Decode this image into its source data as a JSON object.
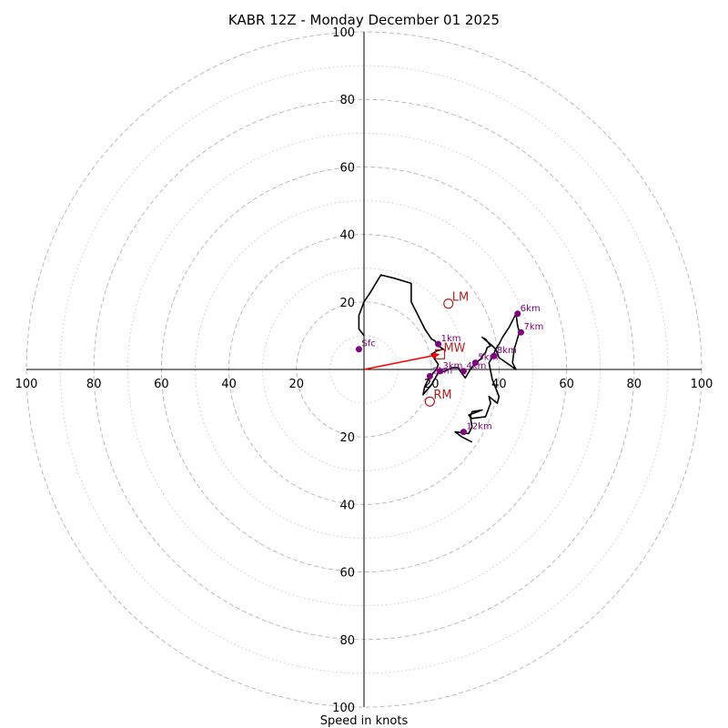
{
  "chart_data": {
    "type": "hodograph",
    "title": "KABR 12Z - Monday December 01 2025",
    "xlabel": "Speed in knots",
    "units": "knots",
    "axis_range": [
      -100,
      100
    ],
    "major_rings": [
      20,
      40,
      60,
      80,
      100
    ],
    "minor_rings": [
      10,
      30,
      50,
      70,
      90
    ],
    "tick_labels": {
      "left": [
        "100",
        "80",
        "60",
        "40",
        "20"
      ],
      "right": [
        "20",
        "40",
        "60",
        "80",
        "100"
      ],
      "top": [
        "100",
        "80",
        "60",
        "40",
        "20"
      ],
      "bottom": [
        "20",
        "40",
        "60",
        "80",
        "100"
      ]
    },
    "profile": [
      [
        0,
        10
      ],
      [
        -1.5,
        12
      ],
      [
        -1.5,
        16
      ],
      [
        0,
        20
      ],
      [
        2,
        23
      ],
      [
        5,
        28
      ],
      [
        9,
        27
      ],
      [
        14,
        25.5
      ],
      [
        14,
        20
      ],
      [
        16,
        16
      ],
      [
        18,
        12
      ],
      [
        20,
        9
      ],
      [
        21,
        8.5
      ],
      [
        22,
        7
      ],
      [
        23.5,
        6
      ],
      [
        21.5,
        5.5
      ],
      [
        20,
        4.5
      ],
      [
        21,
        3
      ],
      [
        22,
        1.5
      ],
      [
        21.5,
        0
      ],
      [
        20.5,
        -1
      ],
      [
        20,
        -2
      ],
      [
        19,
        -3
      ],
      [
        18,
        -5
      ],
      [
        17.5,
        -7.5
      ],
      [
        20,
        -4.5
      ],
      [
        22,
        -1
      ],
      [
        24,
        -0.5
      ],
      [
        26,
        0.5
      ],
      [
        28,
        0.5
      ],
      [
        28.5,
        -0.5
      ],
      [
        30,
        -2.5
      ],
      [
        31.5,
        0
      ],
      [
        33,
        2
      ],
      [
        34.5,
        3
      ],
      [
        35,
        4
      ],
      [
        36,
        5
      ],
      [
        36.5,
        6.5
      ],
      [
        37.5,
        7
      ],
      [
        36,
        9
      ],
      [
        35,
        9.5
      ],
      [
        37.5,
        7.5
      ],
      [
        39,
        6
      ],
      [
        40,
        7.5
      ],
      [
        41,
        9.5
      ],
      [
        43,
        12.5
      ],
      [
        45,
        16.5
      ],
      [
        45.5,
        13
      ],
      [
        46,
        11
      ],
      [
        44.5,
        6
      ],
      [
        44,
        2
      ],
      [
        45,
        0
      ],
      [
        40,
        3.5
      ],
      [
        39,
        6
      ],
      [
        38,
        3.5
      ],
      [
        37,
        2
      ],
      [
        38,
        -3
      ],
      [
        40,
        -8
      ],
      [
        39.5,
        -10
      ],
      [
        37,
        -8
      ],
      [
        37.5,
        -10
      ],
      [
        36,
        -14
      ],
      [
        32,
        -14.5
      ],
      [
        31,
        -13.5
      ],
      [
        35,
        -12
      ],
      [
        32,
        -12.5
      ],
      [
        31.5,
        -14
      ],
      [
        32,
        -17
      ],
      [
        31,
        -19
      ],
      [
        27,
        -18.5
      ],
      [
        29,
        -20
      ],
      [
        32,
        -21.5
      ]
    ],
    "height_markers": [
      {
        "label": "Sfc",
        "u": -1.5,
        "v": 6
      },
      {
        "label": "1km",
        "u": 22,
        "v": 7.5
      },
      {
        "label": "2km",
        "u": 19.5,
        "v": -2
      },
      {
        "label": "3km",
        "u": 22.5,
        "v": -0.5
      },
      {
        "label": "4km",
        "u": 29.5,
        "v": -0.5
      },
      {
        "label": "5km",
        "u": 33,
        "v": 2
      },
      {
        "label": "6km",
        "u": 45.5,
        "v": 16.5
      },
      {
        "label": "7km",
        "u": 46.5,
        "v": 11
      },
      {
        "label": "8km",
        "u": 38.5,
        "v": 4
      },
      {
        "label": "12km",
        "u": 29.5,
        "v": -18.5
      }
    ],
    "storm_motions": [
      {
        "label": "LM",
        "u": 25,
        "v": 19.5
      },
      {
        "label": "MW",
        "u": 22.5,
        "v": 4.5
      },
      {
        "label": "RM",
        "u": 19.5,
        "v": -9.5
      }
    ],
    "mean_wind_vector": {
      "u": 22.5,
      "v": 4.5
    },
    "colors": {
      "profile": "#000000",
      "markers": "#800080",
      "storm_motion": "#b22222",
      "vector": "#ff0000",
      "ring": "#bbbbbb",
      "axis": "#000000"
    }
  }
}
